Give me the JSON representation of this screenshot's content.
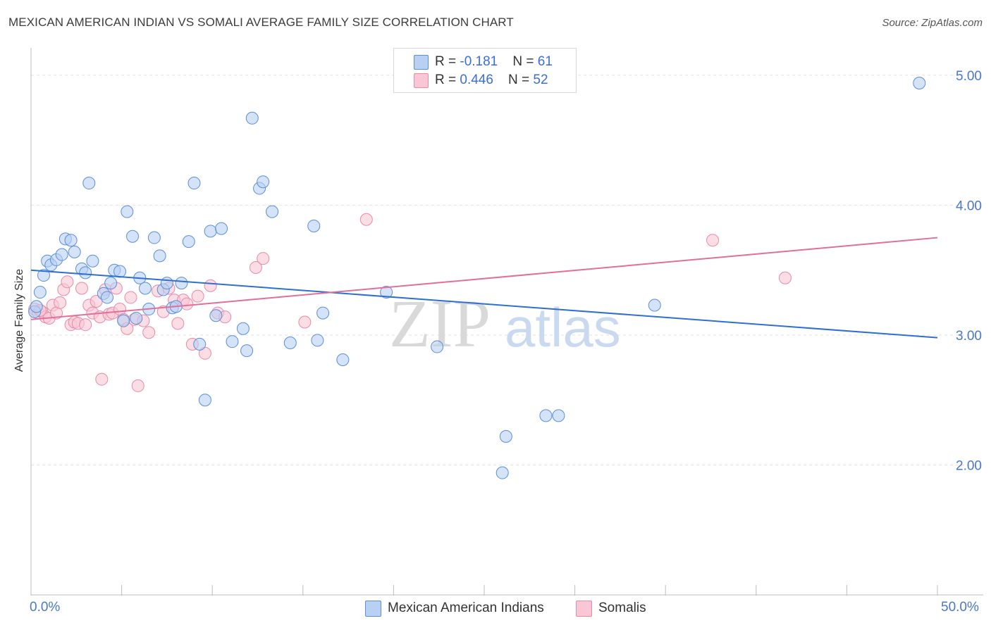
{
  "header": {
    "title": "MEXICAN AMERICAN INDIAN VS SOMALI AVERAGE FAMILY SIZE CORRELATION CHART",
    "source": "Source: ZipAtlas.com"
  },
  "watermark": {
    "zip": "ZIP",
    "atlas": "atlas"
  },
  "legend": {
    "series1": {
      "r_label": "R = ",
      "r_value": "-0.181",
      "n_label": "N = ",
      "n_value": "61"
    },
    "series2": {
      "r_label": "R = ",
      "r_value": "0.446",
      "n_label": "N = ",
      "n_value": "52"
    }
  },
  "colors": {
    "blue_fill": "#b8d0f2",
    "blue_stroke": "#5b8fd6",
    "blue_line": "#2f6fd0",
    "pink_fill": "#f9c6d6",
    "pink_stroke": "#e88aa8",
    "pink_line": "#e0709a",
    "axis_text": "#4a78c8",
    "grid": "#e2e2e2"
  },
  "chart_data": {
    "type": "scatter",
    "title": "MEXICAN AMERICAN INDIAN VS SOMALI AVERAGE FAMILY SIZE CORRELATION CHART",
    "xlabel": "",
    "ylabel": "Average Family Size",
    "xlim": [
      0,
      50
    ],
    "ylim": [
      1.0,
      5.2
    ],
    "x_tick_labels": [
      "0.0%",
      "50.0%"
    ],
    "y_ticks": [
      2.0,
      3.0,
      4.0,
      5.0
    ],
    "y_tick_labels": [
      "2.00",
      "3.00",
      "4.00",
      "5.00"
    ],
    "series": [
      {
        "name": "Mexican American Indians",
        "color": "#5b8fd6",
        "trend": [
          [
            0,
            3.5
          ],
          [
            50,
            2.98
          ]
        ],
        "points": [
          [
            0.2,
            3.18
          ],
          [
            0.5,
            3.33
          ],
          [
            0.7,
            3.46
          ],
          [
            0.9,
            3.57
          ],
          [
            1.1,
            3.54
          ],
          [
            1.4,
            3.58
          ],
          [
            1.7,
            3.62
          ],
          [
            1.9,
            3.74
          ],
          [
            2.2,
            3.73
          ],
          [
            2.4,
            3.64
          ],
          [
            2.8,
            3.51
          ],
          [
            3.0,
            3.48
          ],
          [
            3.2,
            4.17
          ],
          [
            3.4,
            3.57
          ],
          [
            4.0,
            3.32
          ],
          [
            4.2,
            3.29
          ],
          [
            4.4,
            3.4
          ],
          [
            4.6,
            3.5
          ],
          [
            4.9,
            3.49
          ],
          [
            5.1,
            3.11
          ],
          [
            5.3,
            3.95
          ],
          [
            5.6,
            3.76
          ],
          [
            5.8,
            3.13
          ],
          [
            6.0,
            3.44
          ],
          [
            6.3,
            3.36
          ],
          [
            6.5,
            3.2
          ],
          [
            6.8,
            3.75
          ],
          [
            7.1,
            3.61
          ],
          [
            7.3,
            3.35
          ],
          [
            7.5,
            3.4
          ],
          [
            7.8,
            3.21
          ],
          [
            8.0,
            3.22
          ],
          [
            8.3,
            3.4
          ],
          [
            8.7,
            3.72
          ],
          [
            9.0,
            4.17
          ],
          [
            9.3,
            2.93
          ],
          [
            9.6,
            2.5
          ],
          [
            9.9,
            3.8
          ],
          [
            10.2,
            3.15
          ],
          [
            10.5,
            3.82
          ],
          [
            11.1,
            2.95
          ],
          [
            11.7,
            3.05
          ],
          [
            11.9,
            2.88
          ],
          [
            12.2,
            4.67
          ],
          [
            12.6,
            4.13
          ],
          [
            12.8,
            4.18
          ],
          [
            13.3,
            3.95
          ],
          [
            14.3,
            2.94
          ],
          [
            15.6,
            3.84
          ],
          [
            15.8,
            2.96
          ],
          [
            16.1,
            3.17
          ],
          [
            17.2,
            2.81
          ],
          [
            19.6,
            3.33
          ],
          [
            22.4,
            2.91
          ],
          [
            26.0,
            1.94
          ],
          [
            26.2,
            2.22
          ],
          [
            28.4,
            2.38
          ],
          [
            29.1,
            2.38
          ],
          [
            34.4,
            3.23
          ],
          [
            0.3,
            3.22
          ],
          [
            49.0,
            4.94
          ]
        ]
      },
      {
        "name": "Somalis",
        "color": "#e88aa8",
        "trend": [
          [
            0,
            3.12
          ],
          [
            50,
            3.75
          ]
        ],
        "points": [
          [
            0.2,
            3.2
          ],
          [
            0.4,
            3.17
          ],
          [
            0.6,
            3.18
          ],
          [
            0.8,
            3.14
          ],
          [
            1.0,
            3.13
          ],
          [
            1.2,
            3.23
          ],
          [
            1.4,
            3.17
          ],
          [
            1.6,
            3.25
          ],
          [
            1.8,
            3.35
          ],
          [
            2.0,
            3.41
          ],
          [
            2.2,
            3.08
          ],
          [
            2.4,
            3.1
          ],
          [
            2.6,
            3.09
          ],
          [
            2.8,
            3.36
          ],
          [
            3.0,
            3.08
          ],
          [
            3.2,
            3.23
          ],
          [
            3.4,
            3.17
          ],
          [
            3.6,
            3.26
          ],
          [
            3.8,
            3.14
          ],
          [
            3.9,
            2.66
          ],
          [
            4.1,
            3.35
          ],
          [
            4.3,
            3.16
          ],
          [
            4.5,
            3.17
          ],
          [
            4.7,
            3.36
          ],
          [
            4.9,
            3.2
          ],
          [
            5.1,
            3.12
          ],
          [
            5.3,
            3.05
          ],
          [
            5.5,
            3.29
          ],
          [
            5.7,
            3.12
          ],
          [
            5.9,
            2.61
          ],
          [
            6.2,
            3.11
          ],
          [
            6.5,
            3.02
          ],
          [
            7.0,
            3.34
          ],
          [
            7.3,
            3.18
          ],
          [
            7.6,
            3.36
          ],
          [
            7.9,
            3.27
          ],
          [
            8.1,
            3.09
          ],
          [
            8.4,
            3.27
          ],
          [
            8.6,
            3.24
          ],
          [
            8.9,
            2.93
          ],
          [
            9.2,
            3.3
          ],
          [
            9.6,
            2.86
          ],
          [
            9.9,
            3.38
          ],
          [
            10.3,
            3.17
          ],
          [
            10.7,
            3.14
          ],
          [
            12.4,
            3.52
          ],
          [
            12.8,
            3.59
          ],
          [
            15.1,
            3.1
          ],
          [
            18.5,
            3.89
          ],
          [
            37.6,
            3.73
          ],
          [
            41.6,
            3.44
          ],
          [
            0.5,
            3.19
          ]
        ]
      }
    ]
  }
}
